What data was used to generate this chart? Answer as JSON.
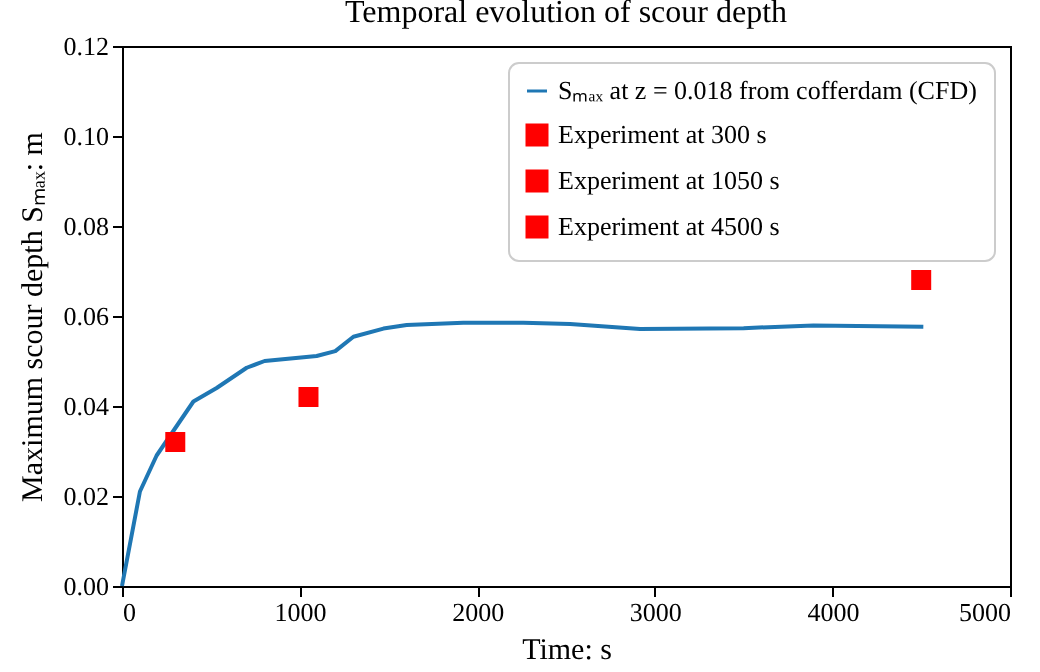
{
  "chart_data": {
    "type": "line",
    "title": "Temporal evolution of scour depth",
    "xlabel": "Time: s",
    "ylabel": "Maximum scour depth Sₘₐₓ: m",
    "xlim": [
      0,
      5000
    ],
    "xticks": [
      0,
      1000,
      2000,
      3000,
      4000,
      5000
    ],
    "ylim": [
      0,
      0.12
    ],
    "yticks": [
      {
        "value": 0,
        "label": "0.00"
      },
      0.02,
      0.04,
      0.06,
      0.08,
      {
        "value": 0.1,
        "label": "0.10"
      },
      0.12
    ],
    "series": [
      {
        "name": "Sₘₐₓ at z = 0.018 from cofferdam (CFD)",
        "color": "#1f77b4",
        "line_style": "solid",
        "x": [
          0,
          101,
          195,
          402,
          533,
          702,
          803,
          1096,
          1201,
          1303,
          1472,
          1603,
          1922,
          2260,
          2523,
          2917,
          3500,
          3893,
          4512
        ],
        "values": [
          0,
          0.021,
          0.029,
          0.041,
          0.044,
          0.0485,
          0.05,
          0.0511,
          0.0522,
          0.0554,
          0.0572,
          0.058,
          0.0585,
          0.0585,
          0.0582,
          0.0571,
          0.0573,
          0.0579,
          0.0576
        ]
      },
      {
        "name": "Experiment at 300 s",
        "type": "scatter",
        "marker": "square",
        "color": "#ff0000",
        "x": [
          300
        ],
        "values": [
          0.032
        ]
      },
      {
        "name": "Experiment at 1050 s",
        "type": "scatter",
        "marker": "square",
        "color": "#ff0000",
        "x": [
          1050
        ],
        "values": [
          0.042
        ]
      },
      {
        "name": "Experiment at 4500 s",
        "type": "scatter",
        "marker": "square",
        "color": "#ff0000",
        "x": [
          4500
        ],
        "values": [
          0.068
        ]
      }
    ],
    "grid": false,
    "legend": "top right"
  }
}
